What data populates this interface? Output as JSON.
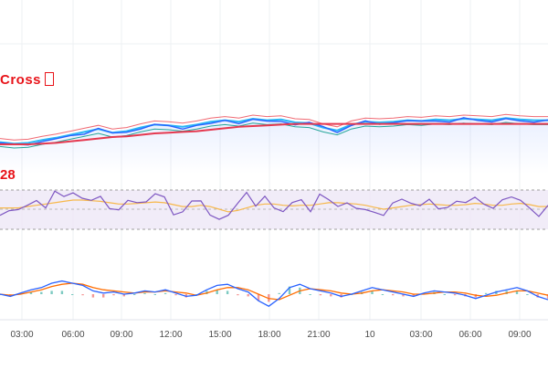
{
  "main_pane": {
    "signal_label": "Cross",
    "signal_icon": "square-outline-icon"
  },
  "rsi_pane": {
    "value_label": "28"
  },
  "time_axis": {
    "ticks": [
      "03:00",
      "06:00",
      "09:00",
      "12:00",
      "15:00",
      "18:00",
      "21:00",
      "10",
      "03:00",
      "06:00",
      "09:00"
    ]
  },
  "colors": {
    "price_line": "#2962ff",
    "long_ma": "#e53950",
    "band_upper": "#f06a73",
    "band_lower": "#26a69a",
    "ema_fast": "#29b6f6",
    "rsi_line": "#7e57c2",
    "rsi_signal": "#f7b84b",
    "rsi_band_fill": "#ede7f6",
    "macd_line": "#2962ff",
    "macd_signal": "#ff6d00",
    "hist_up": "#26a69a",
    "hist_down": "#ef5350",
    "label_red": "#e8141a",
    "grid": "#eef0f3",
    "axis_text": "#4a4a4a"
  },
  "chart_data": [
    {
      "type": "line",
      "pane": "price",
      "series": [
        {
          "values": [
            0.42,
            0.4,
            0.41,
            0.45,
            0.48,
            0.52,
            0.56,
            0.6,
            0.55,
            0.57,
            0.62,
            0.66,
            0.65,
            0.63,
            0.66,
            0.7,
            0.72,
            0.7,
            0.74,
            0.72,
            0.73,
            0.69,
            0.68,
            0.62,
            0.58,
            0.66,
            0.7,
            0.69,
            0.7,
            0.72,
            0.71,
            0.73,
            0.72,
            0.74,
            0.73,
            0.72,
            0.75,
            0.73,
            0.72,
            0.72
          ]
        },
        {
          "values": [
            0.4,
            0.4,
            0.4,
            0.41,
            0.42,
            0.44,
            0.46,
            0.48,
            0.5,
            0.51,
            0.53,
            0.55,
            0.56,
            0.57,
            0.58,
            0.6,
            0.62,
            0.64,
            0.65,
            0.66,
            0.67,
            0.68,
            0.68,
            0.68,
            0.68,
            0.68,
            0.68,
            0.68,
            0.68,
            0.68,
            0.68,
            0.68,
            0.68,
            0.68,
            0.68,
            0.68,
            0.68,
            0.68,
            0.68,
            0.68
          ]
        }
      ]
    },
    {
      "type": "line",
      "pane": "rsi",
      "series": [
        {
          "values": [
            40,
            48,
            44,
            55,
            60,
            52,
            72,
            68,
            74,
            65,
            58,
            66,
            50,
            46,
            60,
            62,
            56,
            70,
            64,
            42,
            46,
            62,
            58,
            38,
            30,
            40,
            58,
            72,
            56,
            66,
            50,
            44,
            60,
            62,
            48,
            72,
            64,
            56,
            58,
            52,
            44,
            40,
            38,
            60,
            66,
            54,
            56,
            62,
            48,
            52,
            58,
            62,
            70,
            52,
            48,
            60,
            66,
            58,
            46,
            40,
            56
          ]
        },
        {
          "values": [
            50,
            50,
            50,
            52,
            54,
            56,
            58,
            60,
            62,
            62,
            61,
            60,
            58,
            56,
            56,
            57,
            58,
            59,
            58,
            55,
            52,
            52,
            54,
            52,
            48,
            44,
            46,
            50,
            54,
            56,
            56,
            54,
            53,
            54,
            54,
            56,
            58,
            58,
            57,
            56,
            54,
            51,
            48,
            50,
            52,
            54,
            55,
            56,
            55,
            54,
            54,
            55,
            57,
            56,
            54,
            54,
            56,
            57,
            55,
            52,
            52
          ]
        }
      ]
    },
    {
      "type": "line",
      "pane": "macd",
      "series": [
        {
          "values": [
            0.0,
            -0.2,
            0.1,
            0.4,
            0.6,
            1.0,
            1.2,
            1.0,
            0.8,
            0.3,
            0.1,
            0.2,
            0.0,
            0.1,
            0.3,
            0.2,
            0.4,
            0.1,
            -0.2,
            -0.1,
            0.4,
            0.8,
            0.9,
            0.5,
            0.2,
            -0.6,
            -1.1,
            -0.4,
            0.6,
            0.9,
            0.5,
            0.3,
            0.1,
            -0.2,
            0.0,
            0.3,
            0.6,
            0.4,
            0.2,
            0.0,
            -0.2,
            0.1,
            0.3,
            0.2,
            0.1,
            -0.1,
            -0.4,
            -0.1,
            0.2,
            0.4,
            0.6,
            0.3,
            -0.2,
            -0.5
          ]
        },
        {
          "values": [
            0.0,
            -0.1,
            0.0,
            0.2,
            0.4,
            0.7,
            0.9,
            1.0,
            0.9,
            0.6,
            0.4,
            0.3,
            0.2,
            0.1,
            0.2,
            0.2,
            0.3,
            0.2,
            0.1,
            -0.1,
            0.1,
            0.4,
            0.6,
            0.6,
            0.4,
            0.0,
            -0.4,
            -0.5,
            -0.1,
            0.3,
            0.5,
            0.4,
            0.3,
            0.1,
            0.0,
            0.1,
            0.3,
            0.4,
            0.3,
            0.2,
            0.0,
            0.0,
            0.1,
            0.2,
            0.2,
            0.1,
            -0.1,
            -0.2,
            -0.1,
            0.1,
            0.3,
            0.3,
            0.1,
            -0.1
          ]
        }
      ]
    }
  ]
}
